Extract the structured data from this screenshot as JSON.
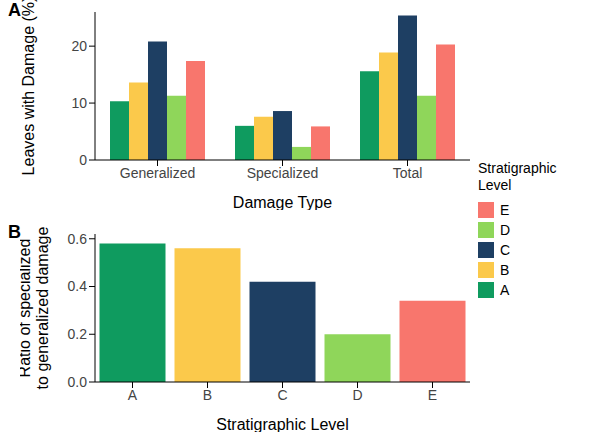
{
  "chart_data": [
    {
      "type": "bar",
      "panel": "A",
      "x_label": "Damage Type",
      "y_label": "Leaves with Damage (%)",
      "categories": [
        "Generalized",
        "Specialized",
        "Total"
      ],
      "series": [
        {
          "name": "A",
          "color": "#0f9b5f",
          "values": [
            10.3,
            6.0,
            15.6
          ]
        },
        {
          "name": "B",
          "color": "#fbc94b",
          "values": [
            13.6,
            7.6,
            18.9
          ]
        },
        {
          "name": "C",
          "color": "#1e3f63",
          "values": [
            20.8,
            8.6,
            25.4
          ]
        },
        {
          "name": "D",
          "color": "#8fd65a",
          "values": [
            11.3,
            2.3,
            11.3
          ]
        },
        {
          "name": "E",
          "color": "#f8766d",
          "values": [
            17.4,
            5.9,
            20.3
          ]
        }
      ],
      "ylim": [
        0,
        26
      ],
      "yticks": [
        0,
        10,
        20
      ],
      "grid": false,
      "legend": "right",
      "legend_title": "Stratigraphic Level"
    },
    {
      "type": "bar",
      "panel": "B",
      "x_label": "Stratigraphic Level",
      "y_label": "Ratio of specialized to generalized damage",
      "categories": [
        "A",
        "B",
        "C",
        "D",
        "E"
      ],
      "values": [
        0.58,
        0.56,
        0.42,
        0.2,
        0.34
      ],
      "colors": [
        "#0f9b5f",
        "#fbc94b",
        "#1e3f63",
        "#8fd65a",
        "#f8766d"
      ],
      "ylim": [
        0,
        0.62
      ],
      "yticks": [
        {
          "value": 0,
          "label": "0.0"
        },
        0.2,
        0.4,
        0.6
      ],
      "grid": false
    }
  ]
}
